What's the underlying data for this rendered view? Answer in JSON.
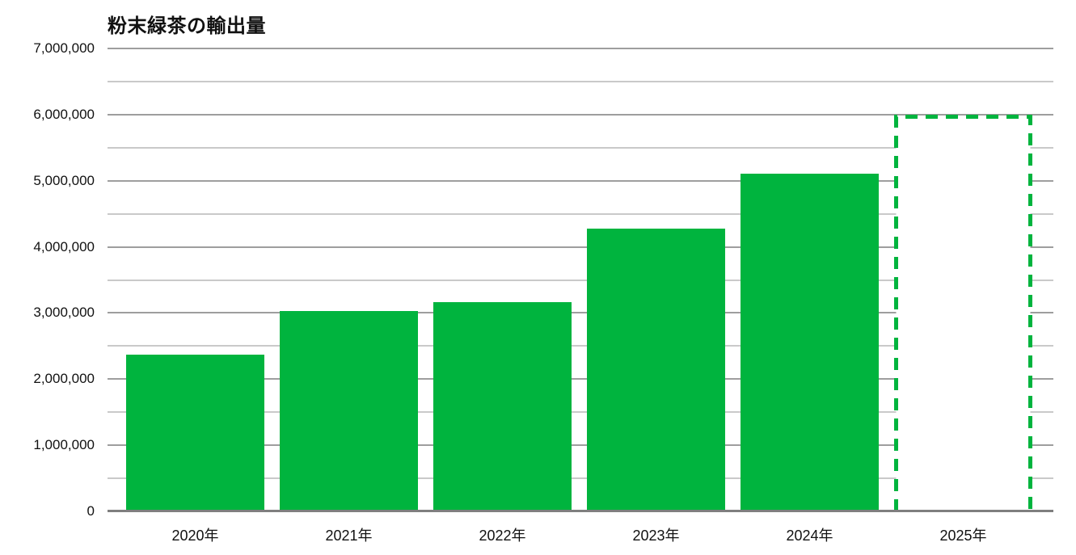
{
  "colors": {
    "background": "#ffffff",
    "bar": "#00B43E",
    "projected-border": "#00B43E",
    "projected-fill": "#ffffff",
    "major-gridline": "#9e9e9e",
    "minor-gridline": "#c9c9c9",
    "axis-line": "#7f7f7f",
    "text": "#111111"
  },
  "chart_data": {
    "type": "bar",
    "title": "粉末緑茶の輸出量",
    "categories": [
      "2020年",
      "2021年",
      "2022年",
      "2023年",
      "2024年",
      "2025年"
    ],
    "values": [
      2370000,
      3030000,
      3160000,
      4280000,
      5110000,
      6000000
    ],
    "projected": [
      false,
      false,
      false,
      false,
      false,
      true
    ],
    "projected_style": "green dashed outline, white fill, no bottom edge",
    "xlabel": "",
    "ylabel": "",
    "ylim": [
      0,
      7000000
    ],
    "y_major_step": 1000000,
    "y_minor_step": 500000,
    "y_tick_labels": [
      "0",
      "1,000,000",
      "2,000,000",
      "3,000,000",
      "4,000,000",
      "5,000,000",
      "6,000,000",
      "7,000,000"
    ],
    "grid": true,
    "legend": false
  }
}
